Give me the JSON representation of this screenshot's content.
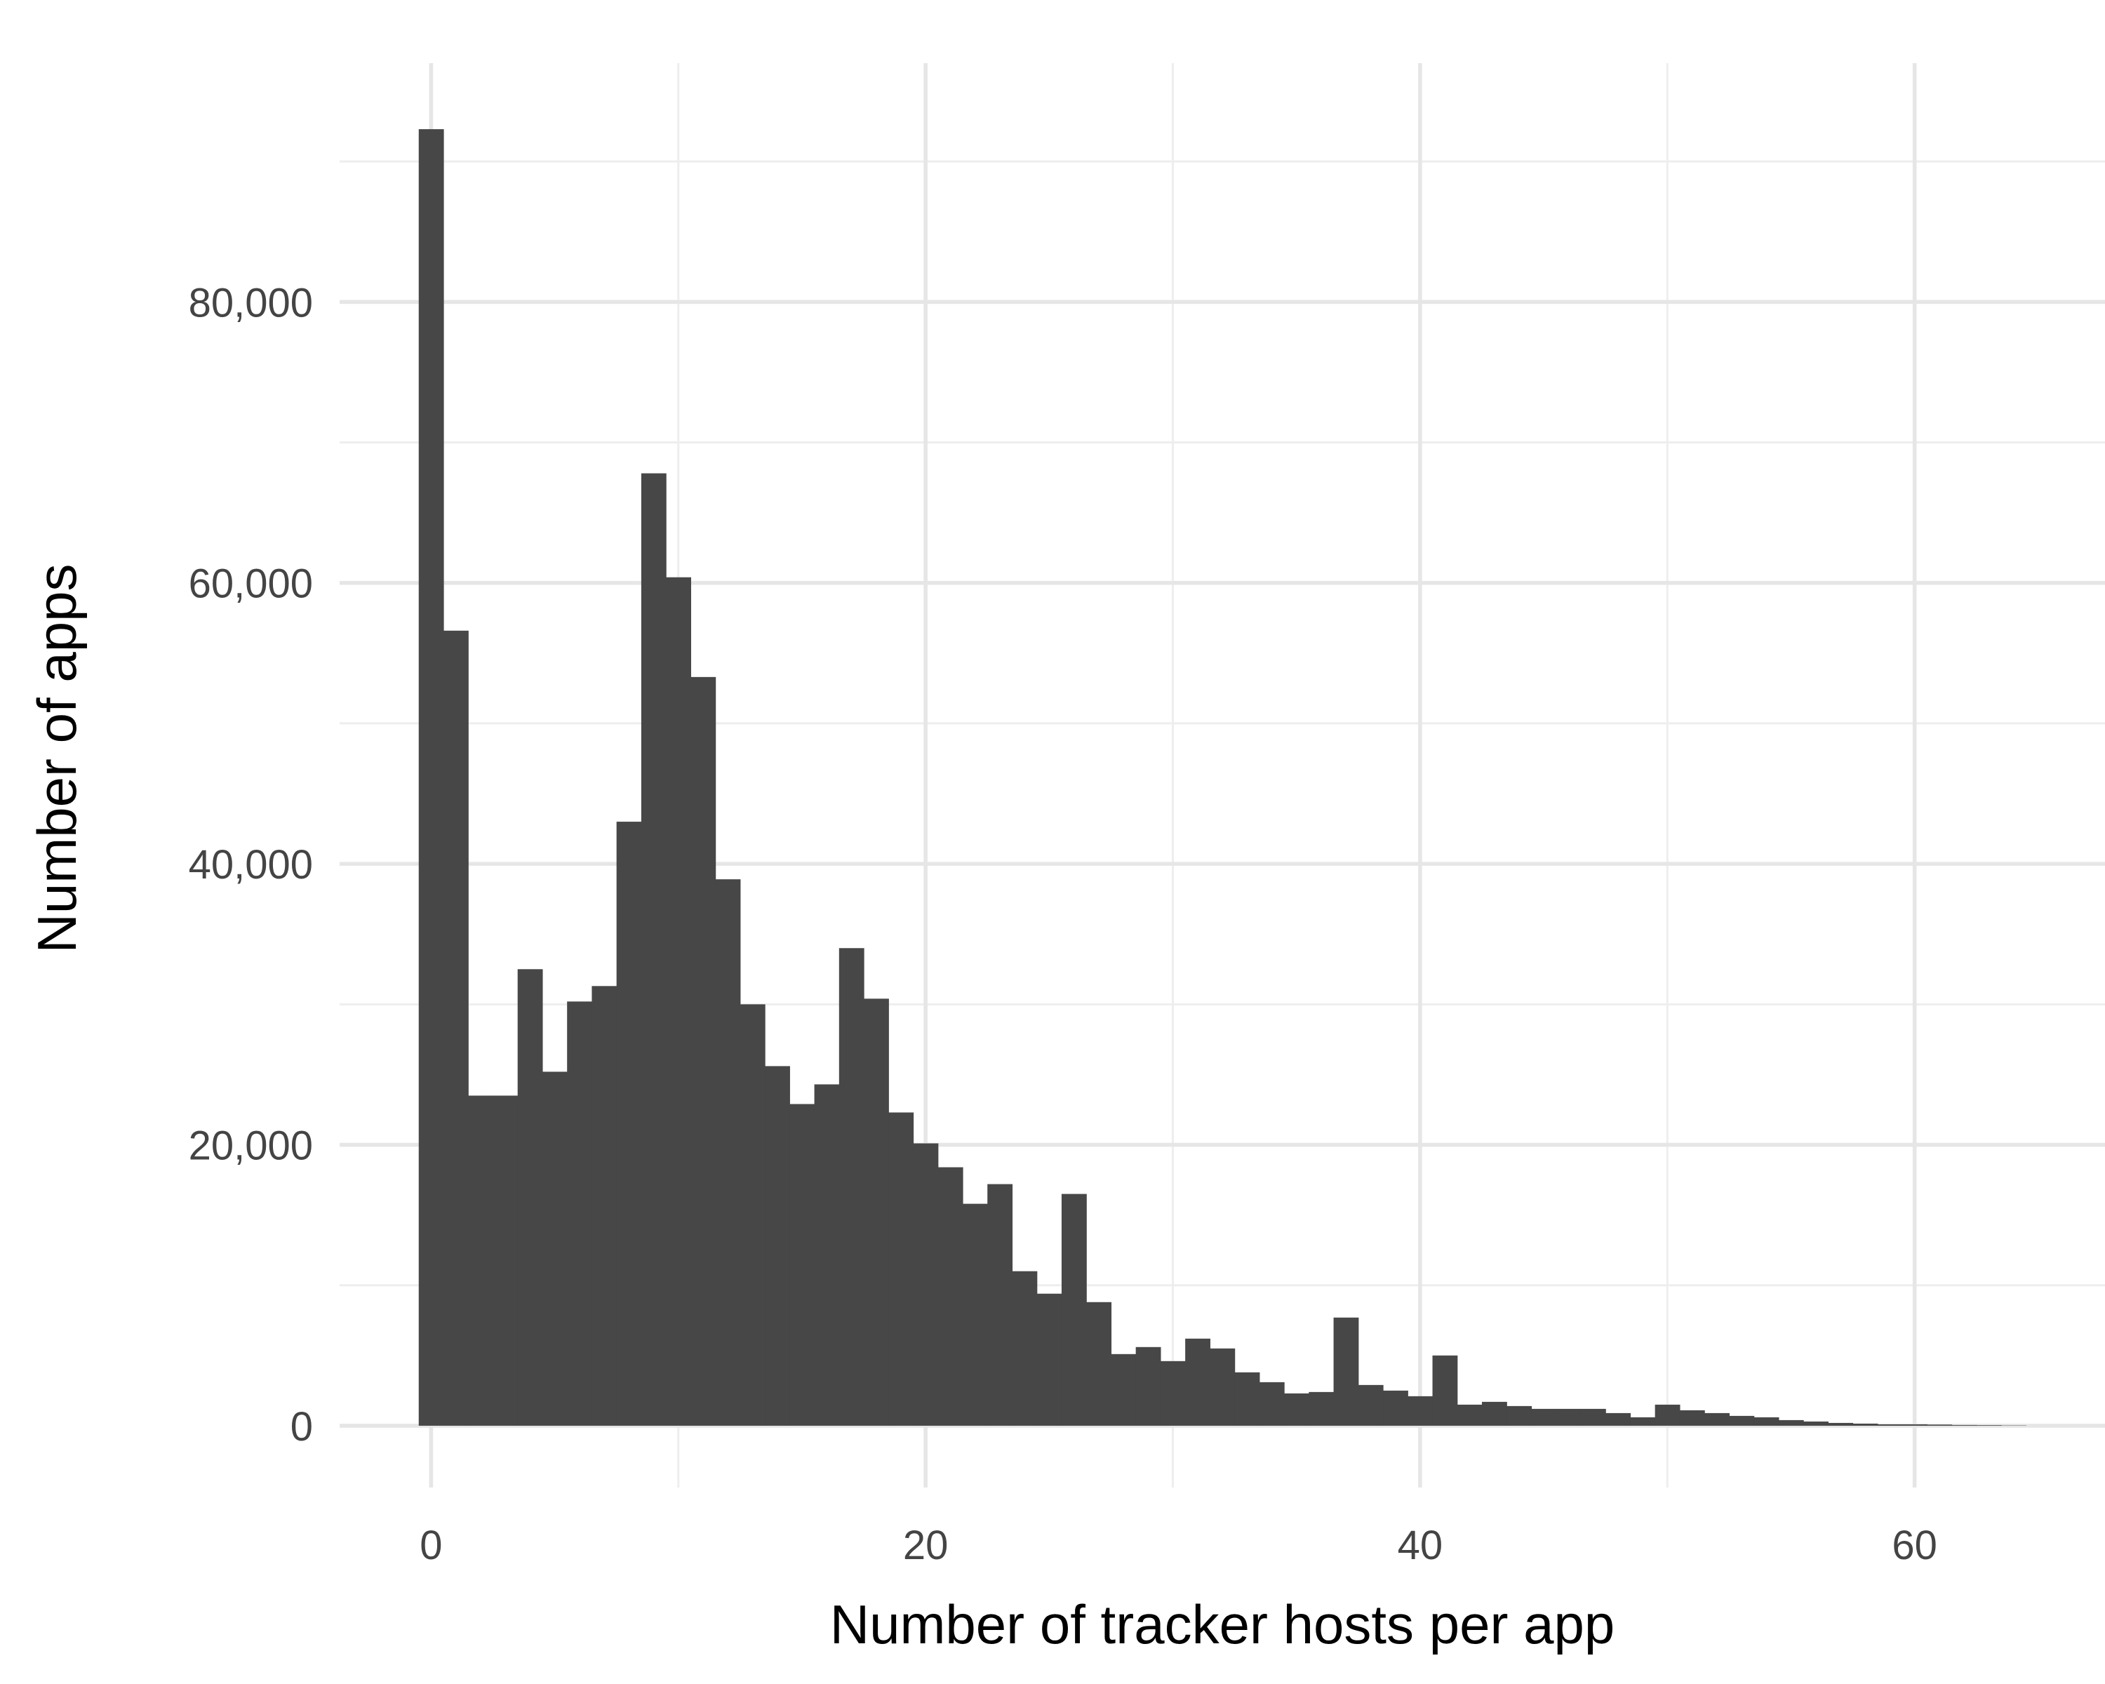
{
  "chart_data": {
    "type": "bar",
    "subtype": "histogram",
    "title": "",
    "xlabel": "Number of tracker hosts per app",
    "ylabel": "Number of apps",
    "xlim": [
      -3.7,
      67.7
    ],
    "ylim": [
      -4400,
      97000
    ],
    "x_ticks": [
      0,
      20,
      40,
      60
    ],
    "x_tick_labels": [
      "0",
      "20",
      "40",
      "60"
    ],
    "y_ticks": [
      0,
      20000,
      40000,
      60000,
      80000
    ],
    "y_tick_labels": [
      "0",
      "20,000",
      "40,000",
      "60,000",
      "80,000"
    ],
    "grid": true,
    "legend": "none",
    "bar_color": "#474747",
    "bin_width": 1,
    "x": [
      0,
      1,
      2,
      3,
      4,
      5,
      6,
      7,
      8,
      9,
      10,
      11,
      12,
      13,
      14,
      15,
      16,
      17,
      18,
      19,
      20,
      21,
      22,
      23,
      24,
      25,
      26,
      27,
      28,
      29,
      30,
      31,
      32,
      33,
      34,
      35,
      36,
      37,
      38,
      39,
      40,
      41,
      42,
      43,
      44,
      45,
      46,
      47,
      48,
      49,
      50,
      51,
      52,
      53,
      54,
      55,
      56,
      57,
      58,
      59,
      60,
      61,
      62,
      63,
      64
    ],
    "values": [
      92300,
      56600,
      23500,
      23500,
      32500,
      25200,
      30200,
      31300,
      43000,
      67800,
      60400,
      53300,
      38900,
      30000,
      25600,
      22900,
      24300,
      34000,
      30400,
      22300,
      20100,
      18400,
      15800,
      17200,
      11000,
      9400,
      16500,
      8800,
      5100,
      5600,
      4600,
      6200,
      5500,
      3800,
      3100,
      2300,
      2400,
      7700,
      2900,
      2500,
      2100,
      5000,
      1500,
      1700,
      1400,
      1200,
      1200,
      1200,
      900,
      600,
      1500,
      1100,
      900,
      700,
      600,
      400,
      300,
      200,
      150,
      100,
      100,
      80,
      50,
      40,
      20
    ]
  }
}
